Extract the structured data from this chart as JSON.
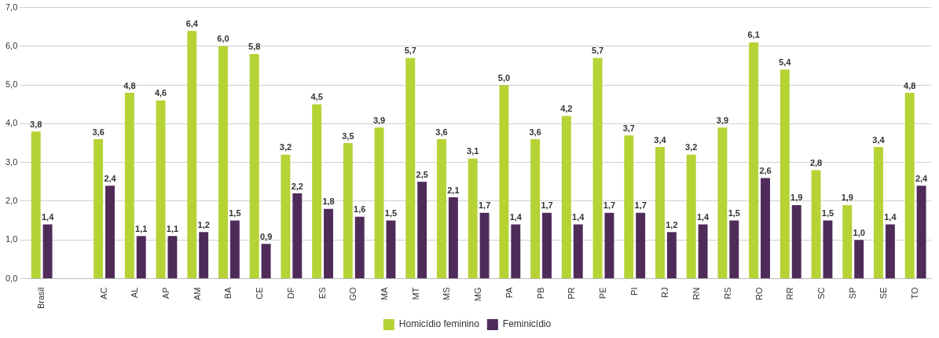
{
  "chart_data": {
    "type": "bar",
    "categories": [
      "Brasil",
      null,
      "AC",
      "AL",
      "AP",
      "AM",
      "BA",
      "CE",
      "DF",
      "ES",
      "GO",
      "MA",
      "MT",
      "MS",
      "MG",
      "PA",
      "PB",
      "PR",
      "PE",
      "PI",
      "RJ",
      "RN",
      "RS",
      "RO",
      "RR",
      "SC",
      "SP",
      "SE",
      "TO"
    ],
    "series": [
      {
        "name": "Homicídio feminino",
        "color": "#b5d334",
        "values": [
          3.8,
          null,
          3.6,
          4.8,
          4.6,
          6.4,
          6.0,
          5.8,
          3.2,
          4.5,
          3.5,
          3.9,
          5.7,
          3.6,
          3.1,
          5.0,
          3.6,
          4.2,
          5.7,
          3.7,
          3.4,
          3.2,
          3.9,
          6.1,
          5.4,
          2.8,
          1.9,
          3.4,
          4.8
        ],
        "value_labels": [
          "3,8",
          null,
          "3,6",
          "4,8",
          "4,6",
          "6,4",
          "6,0",
          "5,8",
          "3,2",
          "4,5",
          "3,5",
          "3,9",
          "5,7",
          "3,6",
          "3,1",
          "5,0",
          "3,6",
          "4,2",
          "5,7",
          "3,7",
          "3,4",
          "3,2",
          "3,9",
          "6,1",
          "5,4",
          "2,8",
          "1,9",
          "3,4",
          "4,8"
        ]
      },
      {
        "name": "Feminicídio",
        "color": "#4f2b5a",
        "values": [
          1.4,
          null,
          2.4,
          1.1,
          1.1,
          1.2,
          1.5,
          0.9,
          2.2,
          1.8,
          1.6,
          1.5,
          2.5,
          2.1,
          1.7,
          1.4,
          1.7,
          1.4,
          1.7,
          1.7,
          1.2,
          1.4,
          1.5,
          2.6,
          1.9,
          1.5,
          1.0,
          1.4,
          2.4
        ],
        "value_labels": [
          "1,4",
          null,
          "2,4",
          "1,1",
          "1,1",
          "1,2",
          "1,5",
          "0,9",
          "2,2",
          "1,8",
          "1,6",
          "1,5",
          "2,5",
          "2,1",
          "1,7",
          "1,4",
          "1,7",
          "1,4",
          "1,7",
          "1,7",
          "1,2",
          "1,4",
          "1,5",
          "2,6",
          "1,9",
          "1,5",
          "1,0",
          "1,4",
          "2,4"
        ]
      }
    ],
    "ylim": [
      0,
      7
    ],
    "yticks": [
      {
        "value": 0,
        "label": "0,0"
      },
      {
        "value": 1,
        "label": "1,0"
      },
      {
        "value": 2,
        "label": "2,0"
      },
      {
        "value": 3,
        "label": "3,0"
      },
      {
        "value": 4,
        "label": "4,0"
      },
      {
        "value": 5,
        "label": "5,0"
      },
      {
        "value": 6,
        "label": "6,0"
      },
      {
        "value": 7,
        "label": "7,0"
      }
    ],
    "grid": "y",
    "legend": "bottom"
  }
}
